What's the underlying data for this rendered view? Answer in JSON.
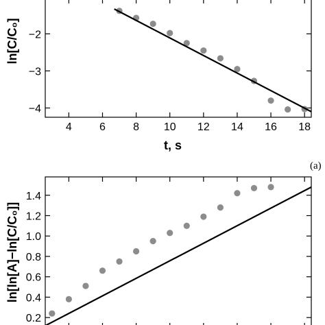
{
  "chart_data": [
    {
      "type": "scatter",
      "panel_label": "(a)",
      "xlabel": "t, s",
      "ylabel": "ln[C/C₀]",
      "xlim": [
        2.6,
        18.4
      ],
      "ylim": [
        -4.25,
        -1.05
      ],
      "xticks": [
        4,
        6,
        8,
        10,
        12,
        14,
        16,
        18
      ],
      "yticks": [
        -4,
        -3,
        -2
      ],
      "ytick_labels": [
        "−4",
        "−3",
        "−2"
      ],
      "series": [
        {
          "points": [
            [
              7,
              -1.38
            ],
            [
              8,
              -1.57
            ],
            [
              9,
              -1.73
            ],
            [
              10,
              -1.98
            ],
            [
              11,
              -2.25
            ],
            [
              12,
              -2.45
            ],
            [
              13,
              -2.66
            ],
            [
              14,
              -2.95
            ],
            [
              15,
              -3.27
            ],
            [
              16,
              -3.8
            ],
            [
              17,
              -4.04
            ],
            [
              18,
              -4.03
            ]
          ]
        }
      ],
      "fit_line": [
        [
          6.7,
          -1.33
        ],
        [
          18.4,
          -4.1
        ]
      ],
      "marker_color": "#8c8c8c",
      "line_color": "#000000"
    },
    {
      "type": "scatter",
      "xlabel": "",
      "ylabel": "ln[ln[A]−ln[C/C₀]]",
      "xlim": [
        2.6,
        18.4
      ],
      "ylim": [
        0.1,
        1.58
      ],
      "yticks": [
        0.2,
        0.4,
        0.6,
        0.8,
        1.0,
        1.2,
        1.4
      ],
      "ytick_labels": [
        "0.2",
        "0.4",
        "0.6",
        "0.8",
        "1.0",
        "1.2",
        "1.4"
      ],
      "series": [
        {
          "points": [
            [
              3,
              0.24
            ],
            [
              4,
              0.38
            ],
            [
              5,
              0.51
            ],
            [
              6,
              0.66
            ],
            [
              7,
              0.75
            ],
            [
              8,
              0.85
            ],
            [
              9,
              0.95
            ],
            [
              10,
              1.03
            ],
            [
              11,
              1.1
            ],
            [
              12,
              1.19
            ],
            [
              13,
              1.28
            ],
            [
              14,
              1.42
            ],
            [
              15,
              1.47
            ],
            [
              16,
              1.48
            ]
          ]
        }
      ],
      "fit_line": [
        [
          2.6,
          0.12
        ],
        [
          18.4,
          1.48
        ]
      ],
      "marker_color": "#8c8c8c",
      "line_color": "#000000"
    }
  ]
}
